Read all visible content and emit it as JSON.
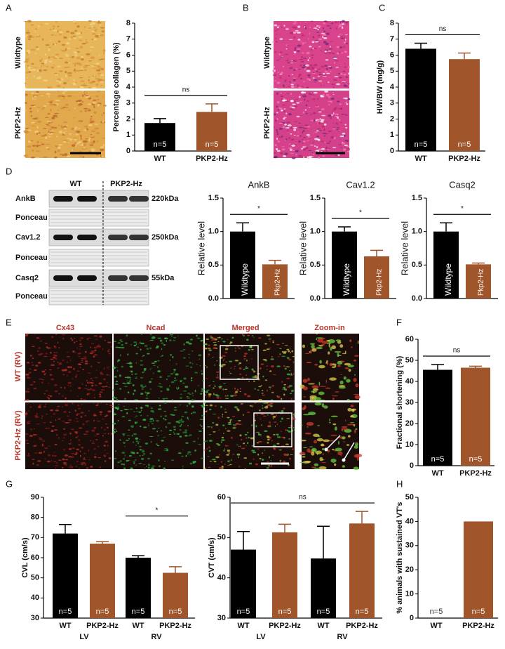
{
  "figure": {
    "letters": [
      "A",
      "B",
      "C",
      "D",
      "E",
      "F",
      "G",
      "H"
    ],
    "image_A": {
      "rows": [
        "Wildtype",
        "PKP2-Hz"
      ]
    },
    "image_B": {
      "rows": [
        "Wildtype",
        "PKP2-Hz"
      ]
    },
    "blot": {
      "columns": [
        "WT",
        "PKP2-Hz"
      ],
      "rows": [
        "AnkB",
        "Ponceau",
        "Cav1.2",
        "Ponceau",
        "Casq2",
        "Ponceau"
      ],
      "sizes": [
        "220kDa",
        "250kDa",
        "55kDa"
      ]
    },
    "image_E": {
      "columns": [
        "Cx43",
        "Ncad",
        "Merged",
        "Zoom-in"
      ],
      "rows": [
        "WT (RV)",
        "PKP2-Hz (RV)"
      ]
    }
  },
  "chart_data": [
    {
      "type": "bar",
      "ylabel": "Percentage collagen (%)",
      "categories": [
        "WT",
        "PKP2-Hz"
      ],
      "values": [
        1.75,
        2.45
      ],
      "errors": [
        0.28,
        0.5
      ],
      "colors": [
        "#000000",
        "#a0562a"
      ],
      "n_labels": [
        "n=5",
        "n=5"
      ],
      "significance": "ns",
      "ylim": [
        0,
        8
      ],
      "yticks": [
        0,
        1,
        2,
        3,
        4,
        5,
        6,
        7,
        8
      ]
    },
    {
      "type": "bar",
      "ylabel": "HW/BW (mg/g)",
      "categories": [
        "WT",
        "PKP2-Hz"
      ],
      "values": [
        6.4,
        5.75
      ],
      "errors": [
        0.35,
        0.38
      ],
      "colors": [
        "#000000",
        "#a0562a"
      ],
      "n_labels": [
        "n=5",
        "n=5"
      ],
      "significance": "ns",
      "ylim": [
        0,
        8
      ],
      "yticks": [
        0,
        1,
        2,
        3,
        4,
        5,
        6,
        7,
        8
      ]
    },
    {
      "type": "bar",
      "title": "AnkB",
      "ylabel": "Relative level",
      "categories": [
        "Wildtype",
        "Pkp2-Hz"
      ],
      "values": [
        1.0,
        0.51
      ],
      "errors": [
        0.13,
        0.06
      ],
      "colors": [
        "#000000",
        "#a0562a"
      ],
      "significance": "*",
      "ylim": [
        0,
        1.5
      ],
      "yticks": [
        {
          "value": 0,
          "label": "0.0"
        },
        {
          "value": 0.5,
          "label": "0.5"
        },
        {
          "value": 1,
          "label": "1.0"
        },
        {
          "value": 1.5,
          "label": "1.5"
        }
      ]
    },
    {
      "type": "bar",
      "title": "Cav1.2",
      "ylabel": "Relative level",
      "categories": [
        "Wildtype",
        "Pkp2-Hz"
      ],
      "values": [
        1.0,
        0.63
      ],
      "errors": [
        0.07,
        0.09
      ],
      "colors": [
        "#000000",
        "#a0562a"
      ],
      "significance": "*",
      "ylim": [
        0,
        1.5
      ],
      "yticks": [
        {
          "value": 0,
          "label": "0.0"
        },
        {
          "value": 0.5,
          "label": "0.5"
        },
        {
          "value": 1,
          "label": "1.0"
        },
        {
          "value": 1.5,
          "label": "1.5"
        }
      ]
    },
    {
      "type": "bar",
      "title": "Casq2",
      "ylabel": "Relative level",
      "categories": [
        "Wildtype",
        "Pkp2-Hz"
      ],
      "values": [
        1.0,
        0.51
      ],
      "errors": [
        0.13,
        0.02
      ],
      "colors": [
        "#000000",
        "#a0562a"
      ],
      "significance": "*",
      "ylim": [
        0,
        1.5
      ],
      "yticks": [
        {
          "value": 0,
          "label": "0.0"
        },
        {
          "value": 0.5,
          "label": "0.5"
        },
        {
          "value": 1,
          "label": "1.0"
        },
        {
          "value": 1.5,
          "label": "1.5"
        }
      ]
    },
    {
      "type": "bar",
      "ylabel": "Fractional shortening (%)",
      "categories": [
        "WT",
        "PKP2-Hz"
      ],
      "values": [
        45.5,
        46.5
      ],
      "errors": [
        2.5,
        0.7
      ],
      "colors": [
        "#000000",
        "#a0562a"
      ],
      "n_labels": [
        "n=5",
        "n=5"
      ],
      "significance": "ns",
      "ylim": [
        0,
        60
      ],
      "yticks": [
        0,
        10,
        20,
        30,
        40,
        50,
        60
      ]
    },
    {
      "type": "bar",
      "ylabel": "CVL (cm/s)",
      "categories": [
        "WT",
        "PKP2-Hz",
        "WT",
        "PKP2-Hz"
      ],
      "groups": [
        "LV",
        "RV"
      ],
      "values": [
        72,
        67,
        60,
        52.5
      ],
      "errors": [
        4.5,
        1,
        1,
        3
      ],
      "colors": [
        "#000000",
        "#a0562a",
        "#000000",
        "#a0562a"
      ],
      "n_labels": [
        "n=5",
        "n=5",
        "n=5",
        "n=5"
      ],
      "significance": "*",
      "ylim": [
        30,
        90
      ],
      "yticks": [
        30,
        40,
        50,
        60,
        70,
        80,
        90
      ]
    },
    {
      "type": "bar",
      "ylabel": "CVT (cm/s)",
      "categories": [
        "WT",
        "PKP2-Hz",
        "WT",
        "PKP2-Hz"
      ],
      "groups": [
        "LV",
        "RV"
      ],
      "values": [
        47,
        51.3,
        44.8,
        53.5
      ],
      "errors": [
        4.5,
        2,
        8,
        3
      ],
      "colors": [
        "#000000",
        "#a0562a",
        "#000000",
        "#a0562a"
      ],
      "n_labels": [
        "n=5",
        "n=5",
        "n=5",
        "n=5"
      ],
      "significance": "ns",
      "ylim": [
        30,
        60
      ],
      "yticks": [
        30,
        40,
        50,
        60
      ]
    },
    {
      "type": "bar",
      "ylabel": "% animals with sustained VT's",
      "categories": [
        "WT",
        "PKP2-Hz"
      ],
      "values": [
        0,
        40
      ],
      "colors": [
        "#000000",
        "#a0562a"
      ],
      "n_labels": [
        "n=5",
        "n=5"
      ],
      "ylim": [
        0,
        50
      ],
      "yticks": [
        0,
        10,
        20,
        30,
        40,
        50
      ]
    }
  ]
}
